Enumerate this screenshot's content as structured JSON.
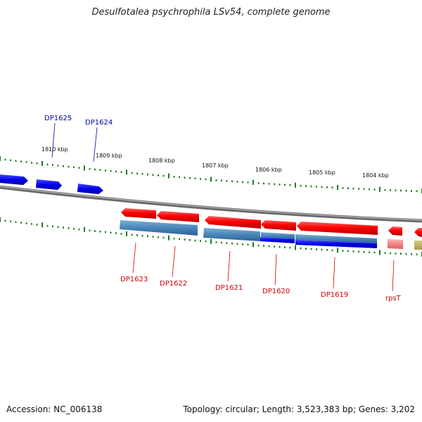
{
  "title": "Desulfotalea psychrophila LSv54, complete genome",
  "footer": {
    "accession": "Accession: NC_006138",
    "summary": "Topology: circular; Length: 3,523,383 bp; Genes: 3,202"
  },
  "ticks": [
    {
      "label": "1810 kbp"
    },
    {
      "label": "1809 kbp"
    },
    {
      "label": "1808 kbp"
    },
    {
      "label": "1807 kbp"
    },
    {
      "label": "1806 kbp"
    },
    {
      "label": "1805 kbp"
    },
    {
      "label": "1804 kbp"
    }
  ],
  "genes_forward": [
    {
      "name": "DP1625",
      "color": "#0000cc"
    },
    {
      "name": "DP1624",
      "color": "#0000cc"
    }
  ],
  "genes_reverse": [
    {
      "name": "DP1623",
      "color": "#cc0000"
    },
    {
      "name": "DP1622",
      "color": "#cc0000"
    },
    {
      "name": "DP1621",
      "color": "#cc0000"
    },
    {
      "name": "DP1620",
      "color": "#cc0000"
    },
    {
      "name": "DP1619",
      "color": "#cc0000"
    },
    {
      "name": "rpsT",
      "color": "#cc0000"
    }
  ]
}
